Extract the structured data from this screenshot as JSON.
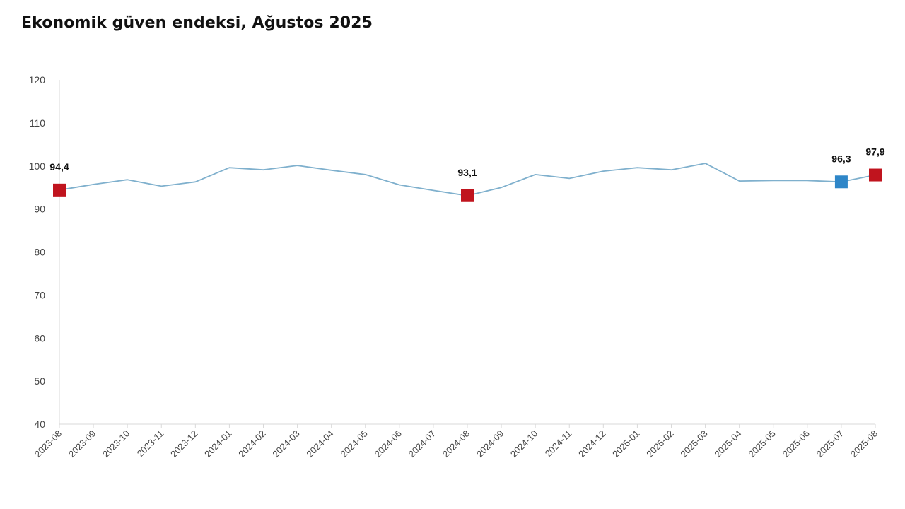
{
  "title": "Ekonomik güven endeksi, Ağustos 2025",
  "colors": {
    "line": "#7fb0cd",
    "highlight_red": "#c0141e",
    "highlight_blue": "#2e86c8",
    "axis": "#d9d9d9",
    "text": "#444444"
  },
  "chart_data": {
    "type": "line",
    "title": "Ekonomik güven endeksi, Ağustos 2025",
    "xlabel": "",
    "ylabel": "",
    "ylim": [
      40,
      120
    ],
    "yticks": [
      40,
      50,
      60,
      70,
      80,
      90,
      100,
      110,
      120
    ],
    "grid": false,
    "categories": [
      "2023-08",
      "2023-09",
      "2023-10",
      "2023-11",
      "2023-12",
      "2024-01",
      "2024-02",
      "2024-03",
      "2024-04",
      "2024-05",
      "2024-06",
      "2024-07",
      "2024-08",
      "2024-09",
      "2024-10",
      "2024-11",
      "2024-12",
      "2025-01",
      "2025-02",
      "2025-03",
      "2025-04",
      "2025-05",
      "2025-06",
      "2025-07",
      "2025-08"
    ],
    "series": [
      {
        "values": [
          94.4,
          95.7,
          96.8,
          95.3,
          96.3,
          99.6,
          99.1,
          100.1,
          99.0,
          98.0,
          95.6,
          94.3,
          93.1,
          95.0,
          98.0,
          97.1,
          98.8,
          99.6,
          99.1,
          100.6,
          96.5,
          96.6,
          96.6,
          96.3,
          97.9
        ]
      }
    ],
    "highlighted_points": [
      {
        "category": "2023-08",
        "value": 94.4,
        "label": "94,4",
        "color": "red"
      },
      {
        "category": "2024-08",
        "value": 93.1,
        "label": "93,1",
        "color": "red"
      },
      {
        "category": "2025-07",
        "value": 96.3,
        "label": "96,3",
        "color": "blue"
      },
      {
        "category": "2025-08",
        "value": 97.9,
        "label": "97,9",
        "color": "red"
      }
    ]
  }
}
